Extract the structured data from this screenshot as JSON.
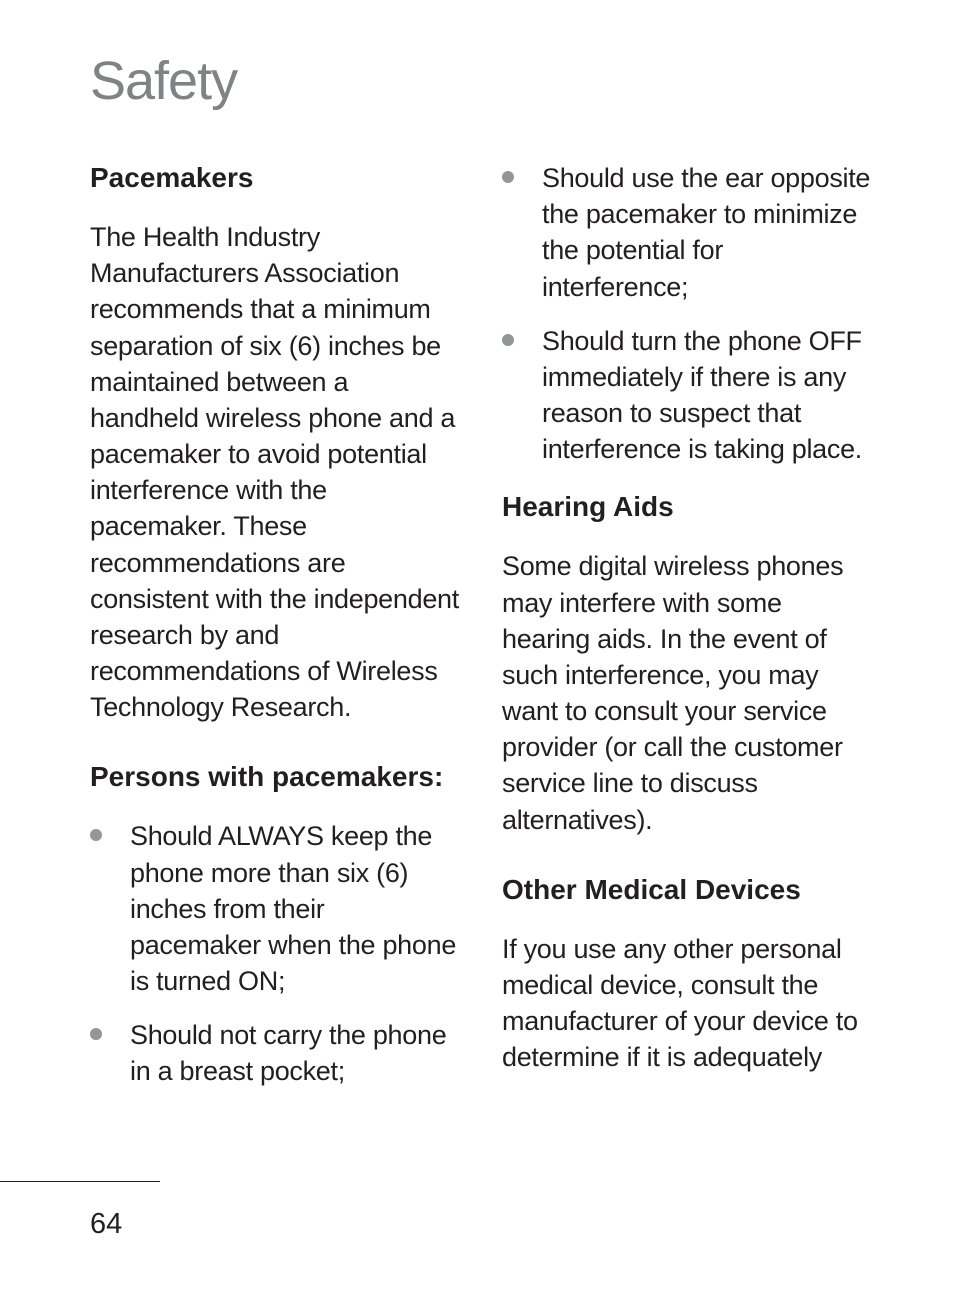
{
  "chapter_title": "Safety",
  "page_number": "64",
  "colors": {
    "chapter_title": "#808285",
    "body_text": "#231f20",
    "heading": "#231f20",
    "bullet": "#939598",
    "background": "#ffffff",
    "footer_rule": "#231f20"
  },
  "typography": {
    "chapter_title_pt": 54,
    "chapter_title_weight": 300,
    "heading_pt": 28,
    "heading_weight": 700,
    "body_pt": 27,
    "body_weight": 300,
    "page_number_pt": 29
  },
  "left": {
    "pacemakers": {
      "heading": "Pacemakers",
      "body": "The Health Industry Manufacturers Association recommends that a minimum separation of six (6) inches be maintained between a handheld wireless phone and a pacemaker to avoid potential interference with the pacemaker. These recommendations are consistent with the independent research by and recommendations of Wireless Technology Research."
    },
    "persons": {
      "heading": "Persons with pacemakers:",
      "items": [
        "Should ALWAYS keep the phone more than six (6) inches from their pacemaker when the phone is turned ON;",
        "Should not carry the phone in a breast pocket;"
      ]
    }
  },
  "right": {
    "cont_items": [
      "Should use the ear opposite the pacemaker to minimize the potential for interference;",
      "Should turn the phone OFF immediately if there is any reason to suspect that interference is taking place."
    ],
    "hearing": {
      "heading": "Hearing Aids",
      "body": "Some digital wireless phones may interfere with some hearing aids. In the event of such interference, you may want to consult your service provider (or call the customer service line to discuss alternatives)."
    },
    "other": {
      "heading": "Other Medical Devices",
      "body": "If you use any other personal medical device, consult the manufacturer of your device to determine if it is adequately"
    }
  }
}
